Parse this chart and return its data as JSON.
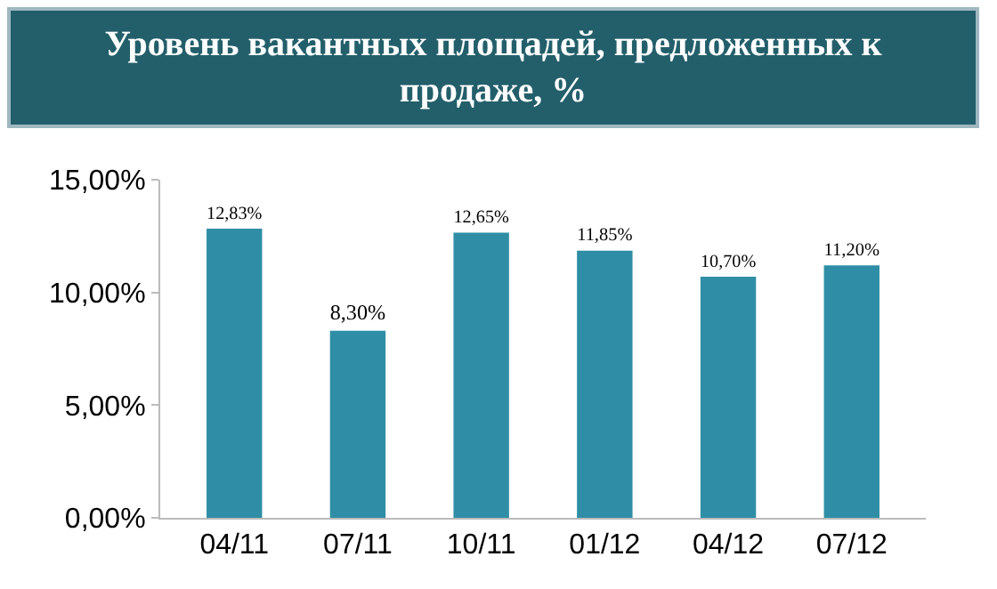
{
  "chart_data": {
    "type": "bar",
    "title": "Уровень вакантных площадей, предложенных к продаже, %",
    "categories": [
      "04/11",
      "07/11",
      "10/11",
      "01/12",
      "04/12",
      "07/12"
    ],
    "values": [
      12.83,
      8.3,
      12.65,
      11.85,
      10.7,
      11.2
    ],
    "value_labels": [
      "12,83%",
      "8,30%",
      "12,65%",
      "11,85%",
      "10,70%",
      "11,20%"
    ],
    "color": "#2f8ea5",
    "ylim": [
      0,
      15
    ],
    "yticks": [
      {
        "value": 0,
        "label": "0,00%"
      },
      {
        "value": 5,
        "label": "5,00%"
      },
      {
        "value": 10,
        "label": "10,00%"
      },
      {
        "value": 15,
        "label": "15,00%"
      }
    ],
    "grid": false,
    "legend": false
  }
}
